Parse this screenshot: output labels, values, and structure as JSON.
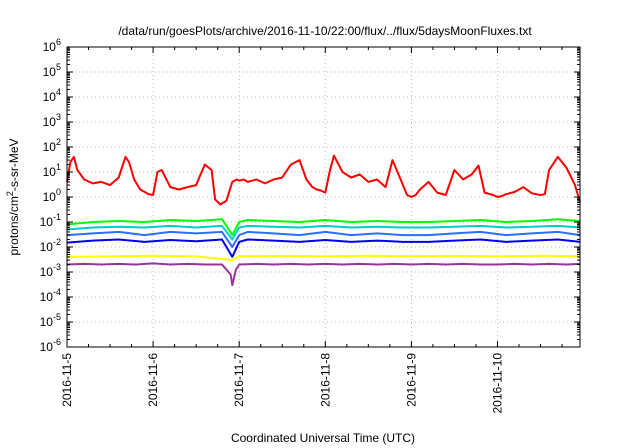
{
  "chart_data": {
    "type": "line",
    "title": "/data/run/goesPlots/archive/2016-11-10/22:00/flux/../flux/5daysMoonFluxes.txt",
    "xlabel": "Coordinated Universal Time (UTC)",
    "ylabel": {
      "pre": "protons/cm",
      "sup": "2",
      "post": "-s-sr-MeV"
    },
    "yscale": "log",
    "ylim": [
      1e-06,
      1000000.0
    ],
    "y_ticks": [
      {
        "base": "10",
        "exp": "-6"
      },
      {
        "base": "10",
        "exp": "-5"
      },
      {
        "base": "10",
        "exp": "-4"
      },
      {
        "base": "10",
        "exp": "-3"
      },
      {
        "base": "10",
        "exp": "-2"
      },
      {
        "base": "10",
        "exp": "-1"
      },
      {
        "base": "10",
        "exp": "0"
      },
      {
        "base": "10",
        "exp": "1"
      },
      {
        "base": "10",
        "exp": "2"
      },
      {
        "base": "10",
        "exp": "3"
      },
      {
        "base": "10",
        "exp": "4"
      },
      {
        "base": "10",
        "exp": "5"
      },
      {
        "base": "10",
        "exp": "6"
      }
    ],
    "x_ticks": [
      "2016-11-5",
      "2016-11-6",
      "2016-11-7",
      "2016-11-8",
      "2016-11-9",
      "2016-11-10"
    ],
    "xlim": [
      "2016-11-05T00:00",
      "2016-11-10T23:00"
    ],
    "grid": true,
    "legend": "none",
    "series": [
      {
        "color": "#ff0000",
        "x": [
          0,
          0.04,
          0.08,
          0.12,
          0.2,
          0.3,
          0.4,
          0.5,
          0.6,
          0.68,
          0.72,
          0.78,
          0.85,
          0.95,
          1.0,
          1.05,
          1.1,
          1.2,
          1.3,
          1.4,
          1.5,
          1.6,
          1.68,
          1.72,
          1.78,
          1.85,
          1.92,
          1.97,
          2.0,
          2.05,
          2.1,
          2.2,
          2.3,
          2.4,
          2.5,
          2.6,
          2.7,
          2.78,
          2.85,
          2.9,
          2.95,
          3.0,
          3.05,
          3.1,
          3.2,
          3.3,
          3.4,
          3.5,
          3.6,
          3.7,
          3.78,
          3.85,
          3.95,
          4.0,
          4.05,
          4.1,
          4.2,
          4.3,
          4.4,
          4.5,
          4.6,
          4.7,
          4.78,
          4.85,
          4.95,
          5.0,
          5.05,
          5.1,
          5.2,
          5.3,
          5.4,
          5.5,
          5.55,
          5.6,
          5.7,
          5.8,
          5.9,
          5.96
        ],
        "values": [
          4,
          25,
          40,
          12,
          5,
          3.5,
          4,
          3,
          6,
          40,
          25,
          5,
          2,
          1.3,
          1.2,
          10,
          12,
          2.5,
          2,
          2.5,
          3,
          20,
          12,
          0.8,
          0.5,
          0.7,
          4,
          5,
          4.5,
          5,
          4,
          5,
          3.5,
          5,
          6,
          20,
          30,
          5,
          2.5,
          2,
          1.8,
          1.5,
          10,
          45,
          10,
          6,
          8,
          4,
          5,
          2.5,
          30,
          8,
          1.2,
          1,
          1.2,
          2,
          4,
          1.5,
          1.2,
          12,
          5,
          8,
          18,
          1.5,
          1.2,
          1.0,
          1.1,
          1.3,
          1.6,
          2.5,
          1.4,
          1.2,
          1.3,
          12,
          40,
          15,
          3,
          0.6
        ]
      },
      {
        "color": "#00ff00",
        "x": [
          0,
          0.3,
          0.6,
          0.9,
          1.2,
          1.5,
          1.8,
          1.92,
          2.0,
          2.1,
          2.4,
          2.7,
          3.0,
          3.3,
          3.6,
          3.9,
          4.2,
          4.5,
          4.8,
          5.1,
          5.4,
          5.7,
          5.96
        ],
        "values": [
          0.08,
          0.1,
          0.11,
          0.1,
          0.12,
          0.11,
          0.13,
          0.03,
          0.1,
          0.12,
          0.11,
          0.1,
          0.12,
          0.1,
          0.11,
          0.1,
          0.1,
          0.11,
          0.12,
          0.1,
          0.11,
          0.13,
          0.11
        ]
      },
      {
        "color": "#00cccc",
        "x": [
          0,
          0.3,
          0.6,
          0.9,
          1.2,
          1.5,
          1.8,
          1.92,
          2.0,
          2.1,
          2.4,
          2.7,
          3.0,
          3.3,
          3.6,
          3.9,
          4.2,
          4.5,
          4.8,
          5.1,
          5.4,
          5.7,
          5.96
        ],
        "values": [
          0.05,
          0.06,
          0.065,
          0.06,
          0.07,
          0.06,
          0.07,
          0.02,
          0.06,
          0.07,
          0.065,
          0.06,
          0.07,
          0.06,
          0.065,
          0.06,
          0.06,
          0.065,
          0.07,
          0.06,
          0.065,
          0.07,
          0.06
        ]
      },
      {
        "color": "#2b6fff",
        "x": [
          0,
          0.3,
          0.6,
          0.9,
          1.2,
          1.5,
          1.8,
          1.92,
          2.0,
          2.1,
          2.4,
          2.7,
          3.0,
          3.3,
          3.6,
          3.9,
          4.2,
          4.5,
          4.8,
          5.1,
          5.4,
          5.7,
          5.96
        ],
        "values": [
          0.03,
          0.035,
          0.04,
          0.03,
          0.04,
          0.035,
          0.04,
          0.01,
          0.03,
          0.04,
          0.035,
          0.03,
          0.04,
          0.03,
          0.035,
          0.03,
          0.03,
          0.035,
          0.04,
          0.03,
          0.035,
          0.04,
          0.03
        ]
      },
      {
        "color": "#0000ee",
        "x": [
          0,
          0.3,
          0.6,
          0.9,
          1.2,
          1.5,
          1.8,
          1.92,
          2.0,
          2.1,
          2.4,
          2.7,
          3.0,
          3.3,
          3.6,
          3.9,
          4.2,
          4.5,
          4.8,
          5.1,
          5.4,
          5.7,
          5.96
        ],
        "values": [
          0.015,
          0.018,
          0.02,
          0.016,
          0.019,
          0.017,
          0.02,
          0.004,
          0.016,
          0.02,
          0.018,
          0.016,
          0.019,
          0.016,
          0.018,
          0.016,
          0.016,
          0.018,
          0.02,
          0.016,
          0.018,
          0.02,
          0.016
        ]
      },
      {
        "color": "#ffff00",
        "x": [
          0,
          0.5,
          1.0,
          1.5,
          1.92,
          2.0,
          2.5,
          3.0,
          3.5,
          4.0,
          4.5,
          5.0,
          5.5,
          5.96
        ],
        "values": [
          0.004,
          0.0042,
          0.0045,
          0.0042,
          0.003,
          0.0043,
          0.0044,
          0.0042,
          0.0045,
          0.0043,
          0.0044,
          0.0042,
          0.0045,
          0.0043
        ]
      },
      {
        "color": "#993399",
        "x": [
          0,
          0.2,
          0.4,
          0.6,
          0.8,
          1.0,
          1.2,
          1.4,
          1.6,
          1.8,
          1.9,
          1.92,
          1.96,
          2.0,
          2.2,
          2.4,
          2.6,
          2.8,
          3.0,
          3.2,
          3.4,
          3.6,
          3.8,
          4.0,
          4.2,
          4.4,
          4.6,
          4.8,
          5.0,
          5.2,
          5.4,
          5.6,
          5.8,
          5.96
        ],
        "values": [
          0.002,
          0.0021,
          0.002,
          0.0021,
          0.002,
          0.0022,
          0.002,
          0.0021,
          0.002,
          0.002,
          0.0008,
          0.0003,
          0.0012,
          0.002,
          0.0021,
          0.002,
          0.0021,
          0.002,
          0.0021,
          0.002,
          0.0021,
          0.002,
          0.0021,
          0.002,
          0.0021,
          0.002,
          0.0021,
          0.002,
          0.002,
          0.0021,
          0.002,
          0.0021,
          0.002,
          0.0021
        ]
      }
    ]
  }
}
